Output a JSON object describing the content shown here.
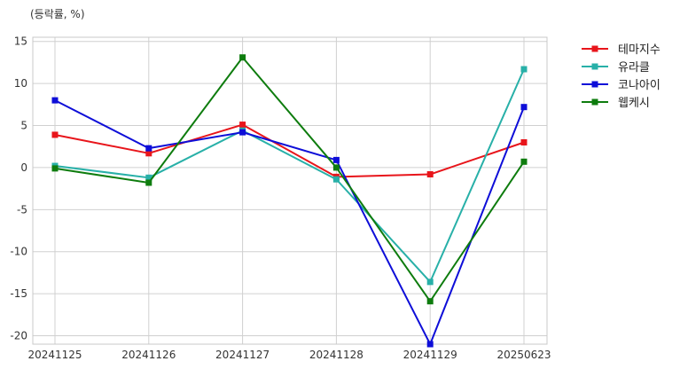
{
  "chart_data": {
    "type": "line",
    "unit_label": "(등락률, %)",
    "categories": [
      "20241125",
      "20241126",
      "20241127",
      "20241128",
      "20241129",
      "20250623"
    ],
    "ylim": [
      -21,
      15.5
    ],
    "yticks": [
      15,
      10,
      5,
      0,
      -5,
      -10,
      -15,
      -20
    ],
    "grid": true,
    "legend_position": "right",
    "series": [
      {
        "name": "테마지수",
        "color": "#e8151b",
        "values": [
          3.9,
          1.7,
          5.1,
          -1.1,
          -0.8,
          3.0
        ]
      },
      {
        "name": "유라클",
        "color": "#28b0a8",
        "values": [
          0.2,
          -1.2,
          4.4,
          -1.4,
          -13.6,
          11.7
        ]
      },
      {
        "name": "코나아이",
        "color": "#0e0ed8",
        "values": [
          8.0,
          2.3,
          4.2,
          0.9,
          -21.0,
          7.2
        ]
      },
      {
        "name": "웹케시",
        "color": "#0e7c0e",
        "values": [
          -0.1,
          -1.8,
          13.1,
          0.0,
          -15.9,
          0.7
        ]
      }
    ]
  }
}
